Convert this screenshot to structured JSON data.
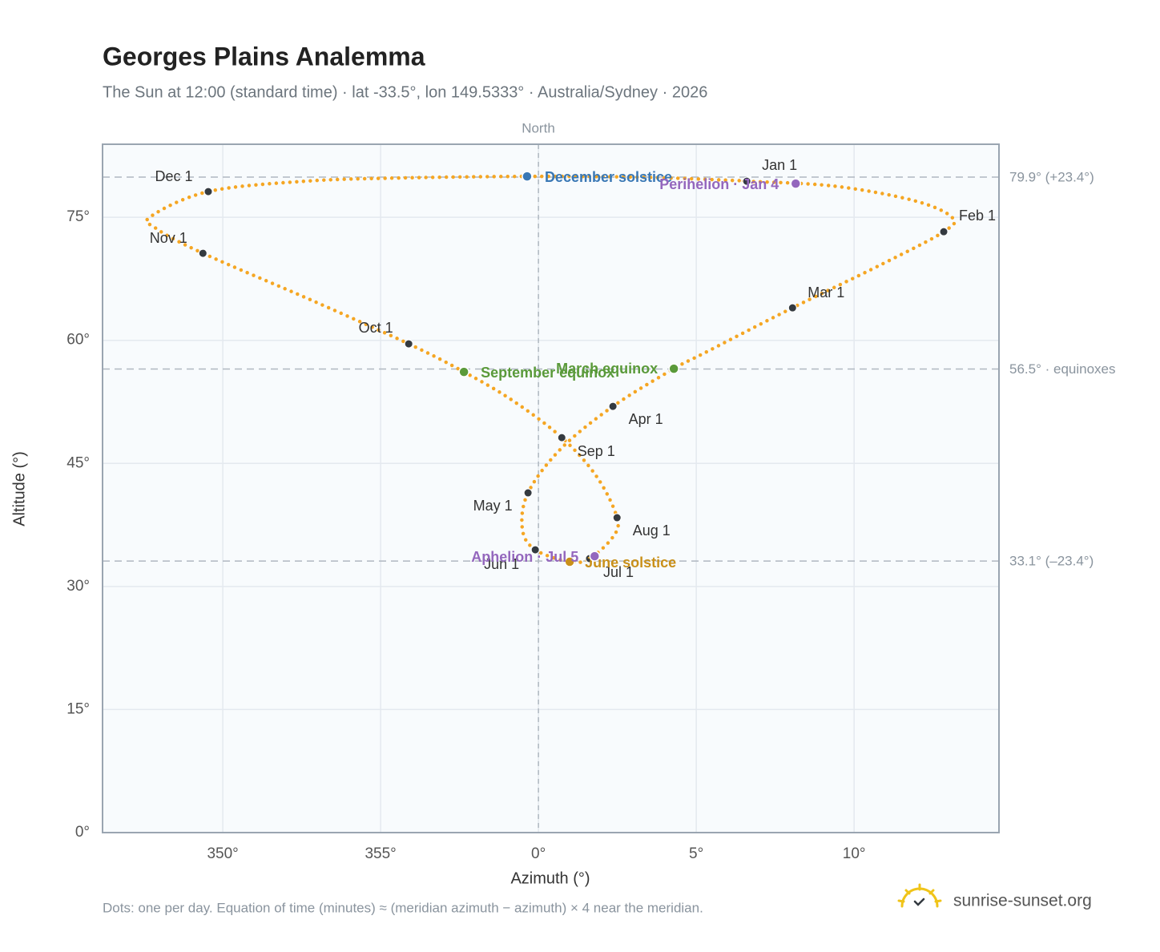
{
  "chart_data": {
    "type": "analemma",
    "title": "Georges Plains Analemma",
    "subtitle": "The Sun at 12:00 (standard time) · lat -33.5°, lon 149.5333° · Australia/Sydney · 2026",
    "north_label": "North",
    "xlabel": "Azimuth (°)",
    "ylabel": "Altitude (°)",
    "xlim": [
      346.19,
      374.59
    ],
    "ylim": [
      0,
      83.9
    ],
    "xticks": [
      {
        "value": 350,
        "label": "350°"
      },
      {
        "value": 355,
        "label": "355°"
      },
      {
        "value": 360,
        "label": "0°"
      },
      {
        "value": 365,
        "label": "5°"
      },
      {
        "value": 370,
        "label": "10°"
      }
    ],
    "yticks": [
      {
        "value": 0,
        "label": "0°"
      },
      {
        "value": 15,
        "label": "15°"
      },
      {
        "value": 30,
        "label": "30°"
      },
      {
        "value": 45,
        "label": "45°"
      },
      {
        "value": 60,
        "label": "60°"
      },
      {
        "value": 75,
        "label": "75°"
      }
    ],
    "grid": true,
    "path": {
      "color": "#f5a623",
      "x": [
        366.6,
        369.34,
        371.88,
        373.1,
        372.84,
        370.86,
        368.05,
        365.28,
        364.29,
        362.36,
        360.71,
        359.67,
        359.49,
        359.9,
        360.99,
        361.62,
        362.36,
        362.49,
        361.85,
        360.74,
        359.19,
        357.64,
        355.89,
        352.84,
        349.37,
        347.89,
        347.72,
        349.54,
        352.59,
        355.63,
        359.64,
        363.25,
        366.17
      ],
      "y": [
        79.39,
        78.81,
        77.05,
        75.0,
        73.24,
        69.24,
        63.96,
        58.5,
        56.54,
        51.95,
        46.78,
        41.41,
        37.01,
        34.47,
        33.01,
        33.4,
        36.04,
        38.38,
        43.36,
        48.14,
        52.64,
        56.15,
        59.57,
        64.84,
        70.61,
        73.63,
        75.1,
        78.13,
        79.39,
        79.79,
        79.98,
        79.88,
        79.49
      ]
    },
    "months": {
      "color": "#343a40",
      "names": [
        "Jan 1",
        "Feb 1",
        "Mar 1",
        "Apr 1",
        "May 1",
        "Jun 1",
        "Jul 1",
        "Aug 1",
        "Sep 1",
        "Oct 1",
        "Nov 1",
        "Dec 1"
      ],
      "x": [
        366.6,
        372.84,
        368.05,
        362.36,
        359.67,
        359.9,
        361.62,
        362.49,
        360.74,
        355.89,
        349.37,
        349.54
      ],
      "y": [
        79.39,
        73.24,
        63.96,
        51.95,
        41.41,
        34.47,
        33.4,
        38.38,
        48.14,
        59.57,
        70.61,
        78.13
      ]
    },
    "events": {
      "names": [
        "December solstice",
        "March equinox",
        "June solstice",
        "September equinox",
        "Perihelion · Jan 4",
        "Aphelion · Jul 5"
      ],
      "colors": [
        "#3a78b5",
        "#5a9a3a",
        "#c9901a",
        "#5a9a3a",
        "#9467bd",
        "#9467bd"
      ],
      "x": [
        359.64,
        364.29,
        360.99,
        357.64,
        368.15,
        361.78
      ],
      "y": [
        79.98,
        56.54,
        33.01,
        56.15,
        79.1,
        33.69
      ]
    },
    "reference_lines": [
      {
        "value": 79.9,
        "label": "79.9° (+23.4°)"
      },
      {
        "value": 56.5,
        "label": "56.5° · equinoxes"
      },
      {
        "value": 33.1,
        "label": "33.1° (–23.4°)"
      }
    ]
  },
  "note": "Dots: one per day. Equation of time (minutes) ≈ (meridian azimuth − azimuth) × 4 near the meridian.",
  "brand": "sunrise-sunset.org"
}
